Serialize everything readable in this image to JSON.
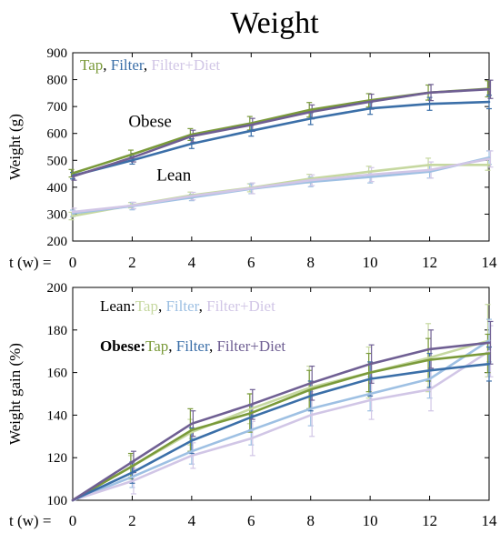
{
  "figure_title": "Weight",
  "time_prefix": "t (w) =",
  "colors": {
    "obese_tap": "#7a9a3a",
    "obese_filter": "#3b6fa8",
    "obese_filter_diet": "#6f5f93",
    "lean_tap": "#c6d8a0",
    "lean_filter": "#9ec0e3",
    "lean_filter_diet": "#d1c6e6",
    "axis": "#000000"
  },
  "chart_data": [
    {
      "type": "line",
      "title": "",
      "xlabel": "",
      "ylabel": "Weight (g)",
      "xlim": [
        0,
        14
      ],
      "ylim": [
        200,
        900
      ],
      "x_ticks": [
        0,
        2,
        4,
        6,
        8,
        10,
        12,
        14
      ],
      "y_ticks": [
        200,
        300,
        400,
        500,
        600,
        700,
        800,
        900
      ],
      "legend": {
        "position": "top-left",
        "entries": [
          {
            "text": "Tap",
            "color_key": "obese_tap"
          },
          {
            "text": ", ",
            "color_key": "axis"
          },
          {
            "text": "Filter",
            "color_key": "obese_filter"
          },
          {
            "text": ", ",
            "color_key": "axis"
          },
          {
            "text": "Filter+Diet",
            "color_key": "lean_filter_diet"
          }
        ]
      },
      "annotations": [
        {
          "text": "Obese",
          "x": 2.6,
          "y": 625
        },
        {
          "text": "Lean",
          "x": 3.4,
          "y": 425
        }
      ],
      "series": [
        {
          "group": "Obese",
          "color_key": "obese_tap",
          "x": [
            0,
            2,
            4,
            6,
            8,
            10,
            12,
            14
          ],
          "values": [
            452,
            522,
            596,
            638,
            688,
            723,
            752,
            766
          ],
          "error": [
            14,
            16,
            22,
            25,
            27,
            25,
            28,
            30
          ]
        },
        {
          "group": "Obese",
          "color_key": "obese_filter",
          "x": [
            0,
            2,
            4,
            6,
            8,
            10,
            12,
            14
          ],
          "values": [
            443,
            500,
            562,
            610,
            655,
            693,
            710,
            717
          ],
          "error": [
            12,
            14,
            18,
            20,
            22,
            22,
            24,
            25
          ]
        },
        {
          "group": "Obese",
          "color_key": "obese_filter_diet",
          "x": [
            0,
            2,
            4,
            6,
            8,
            10,
            12,
            14
          ],
          "values": [
            440,
            510,
            590,
            632,
            680,
            718,
            752,
            764
          ],
          "error": [
            14,
            16,
            22,
            24,
            26,
            28,
            30,
            34
          ]
        },
        {
          "group": "Lean",
          "color_key": "lean_tap",
          "x": [
            0,
            2,
            4,
            6,
            8,
            10,
            12,
            14
          ],
          "values": [
            293,
            333,
            370,
            398,
            432,
            458,
            483,
            483
          ],
          "error": [
            14,
            10,
            12,
            15,
            16,
            20,
            25,
            20
          ]
        },
        {
          "group": "Lean",
          "color_key": "lean_filter",
          "x": [
            0,
            2,
            4,
            6,
            8,
            10,
            12,
            14
          ],
          "values": [
            303,
            330,
            362,
            394,
            420,
            438,
            458,
            510
          ],
          "error": [
            12,
            14,
            12,
            18,
            18,
            22,
            24,
            25
          ]
        },
        {
          "group": "Lean",
          "color_key": "lean_filter_diet",
          "x": [
            0,
            2,
            4,
            6,
            8,
            10,
            12,
            14
          ],
          "values": [
            308,
            332,
            367,
            396,
            426,
            447,
            464,
            505
          ],
          "error": [
            14,
            12,
            14,
            20,
            20,
            26,
            30,
            30
          ]
        }
      ]
    },
    {
      "type": "line",
      "title": "",
      "xlabel": "",
      "ylabel": "Weight gain (%)",
      "xlim": [
        0,
        14
      ],
      "ylim": [
        100,
        200
      ],
      "x_ticks": [
        0,
        2,
        4,
        6,
        8,
        10,
        12,
        14
      ],
      "y_ticks": [
        100,
        120,
        140,
        160,
        180,
        200
      ],
      "legend": {
        "position": "top-left",
        "rows": [
          {
            "label": "Lean:",
            "bold": false,
            "entries": [
              {
                "text": "Tap",
                "color_key": "lean_tap"
              },
              {
                "text": ", ",
                "color_key": "axis"
              },
              {
                "text": "Filter",
                "color_key": "lean_filter"
              },
              {
                "text": ", ",
                "color_key": "axis"
              },
              {
                "text": "Filter+Diet",
                "color_key": "lean_filter_diet"
              }
            ]
          },
          {
            "label": "Obese:",
            "bold": true,
            "entries": [
              {
                "text": "Tap",
                "color_key": "obese_tap"
              },
              {
                "text": ", ",
                "color_key": "axis"
              },
              {
                "text": "Filter",
                "color_key": "obese_filter"
              },
              {
                "text": ", ",
                "color_key": "axis"
              },
              {
                "text": "Filter+Diet",
                "color_key": "obese_filter_diet"
              }
            ]
          }
        ]
      },
      "series": [
        {
          "group": "Lean",
          "color_key": "lean_tap",
          "x": [
            0,
            2,
            4,
            6,
            8,
            10,
            12,
            14
          ],
          "values": [
            100,
            116,
            132,
            143,
            153,
            160,
            167,
            175
          ],
          "error": [
            0,
            5,
            6,
            7,
            10,
            12,
            16,
            17
          ]
        },
        {
          "group": "Lean",
          "color_key": "lean_filter",
          "x": [
            0,
            2,
            4,
            6,
            8,
            10,
            12,
            14
          ],
          "values": [
            100,
            111,
            123,
            133,
            143,
            150,
            157,
            175
          ],
          "error": [
            0,
            5,
            6,
            7,
            8,
            8,
            9,
            10
          ]
        },
        {
          "group": "Lean",
          "color_key": "lean_filter_diet",
          "x": [
            0,
            2,
            4,
            6,
            8,
            10,
            12,
            14
          ],
          "values": [
            100,
            109,
            121,
            129,
            140,
            147,
            152,
            170
          ],
          "error": [
            0,
            6,
            6,
            8,
            10,
            9,
            10,
            12
          ]
        },
        {
          "group": "Obese",
          "color_key": "obese_tap",
          "x": [
            0,
            2,
            4,
            6,
            8,
            10,
            12,
            14
          ],
          "values": [
            100,
            116,
            133,
            141,
            152,
            160,
            166,
            169
          ],
          "error": [
            0,
            6,
            10,
            9,
            9,
            9,
            10,
            9
          ]
        },
        {
          "group": "Obese",
          "color_key": "obese_filter",
          "x": [
            0,
            2,
            4,
            6,
            8,
            10,
            12,
            14
          ],
          "values": [
            100,
            113,
            128,
            139,
            149,
            157,
            161,
            164
          ],
          "error": [
            0,
            5,
            6,
            6,
            7,
            8,
            8,
            8
          ]
        },
        {
          "group": "Obese",
          "color_key": "obese_filter_diet",
          "x": [
            0,
            2,
            4,
            6,
            8,
            10,
            12,
            14
          ],
          "values": [
            100,
            118,
            136,
            145,
            155,
            164,
            171,
            174
          ],
          "error": [
            0,
            5,
            6,
            7,
            8,
            9,
            9,
            10
          ]
        }
      ]
    }
  ]
}
